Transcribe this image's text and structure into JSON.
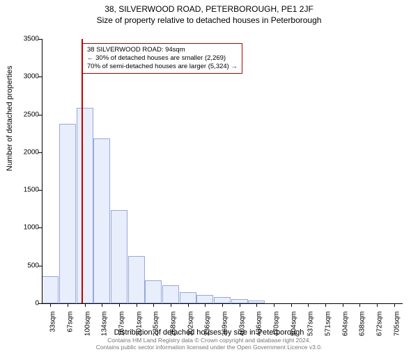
{
  "title_line1": "38, SILVERWOOD ROAD, PETERBOROUGH, PE1 2JF",
  "title_line2": "Size of property relative to detached houses in Peterborough",
  "chart": {
    "type": "histogram",
    "y_axis_label": "Number of detached properties",
    "x_axis_label": "Distribution of detached houses by size in Peterborough",
    "ylim": [
      0,
      3500
    ],
    "ytick_step": 500,
    "yticks": [
      0,
      500,
      1000,
      1500,
      2000,
      2500,
      3000,
      3500
    ],
    "categories": [
      "33sqm",
      "67sqm",
      "100sqm",
      "134sqm",
      "167sqm",
      "201sqm",
      "235sqm",
      "268sqm",
      "302sqm",
      "336sqm",
      "369sqm",
      "403sqm",
      "436sqm",
      "470sqm",
      "504sqm",
      "537sqm",
      "571sqm",
      "604sqm",
      "638sqm",
      "672sqm",
      "705sqm"
    ],
    "values": [
      360,
      2380,
      2590,
      2180,
      1230,
      630,
      300,
      240,
      150,
      110,
      80,
      60,
      40,
      0,
      0,
      0,
      0,
      0,
      0,
      0,
      0
    ],
    "bar_fill": "#e8eefc",
    "bar_stroke": "#97a8d8",
    "background_color": "#ffffff",
    "grid_color": "#000000",
    "reference_line": {
      "x_index": 1.8,
      "color": "#c00000",
      "width": 2
    },
    "annotation": {
      "lines": [
        "38 SILVERWOOD ROAD: 94sqm",
        "← 30% of detached houses are smaller (2,269)",
        "70% of semi-detached houses are larger (5,324) →"
      ],
      "border_color": "#b00000"
    }
  },
  "footer_line1": "Contains HM Land Registry data © Crown copyright and database right 2024.",
  "footer_line2": "Contains public sector information licensed under the Open Government Licence v3.0."
}
